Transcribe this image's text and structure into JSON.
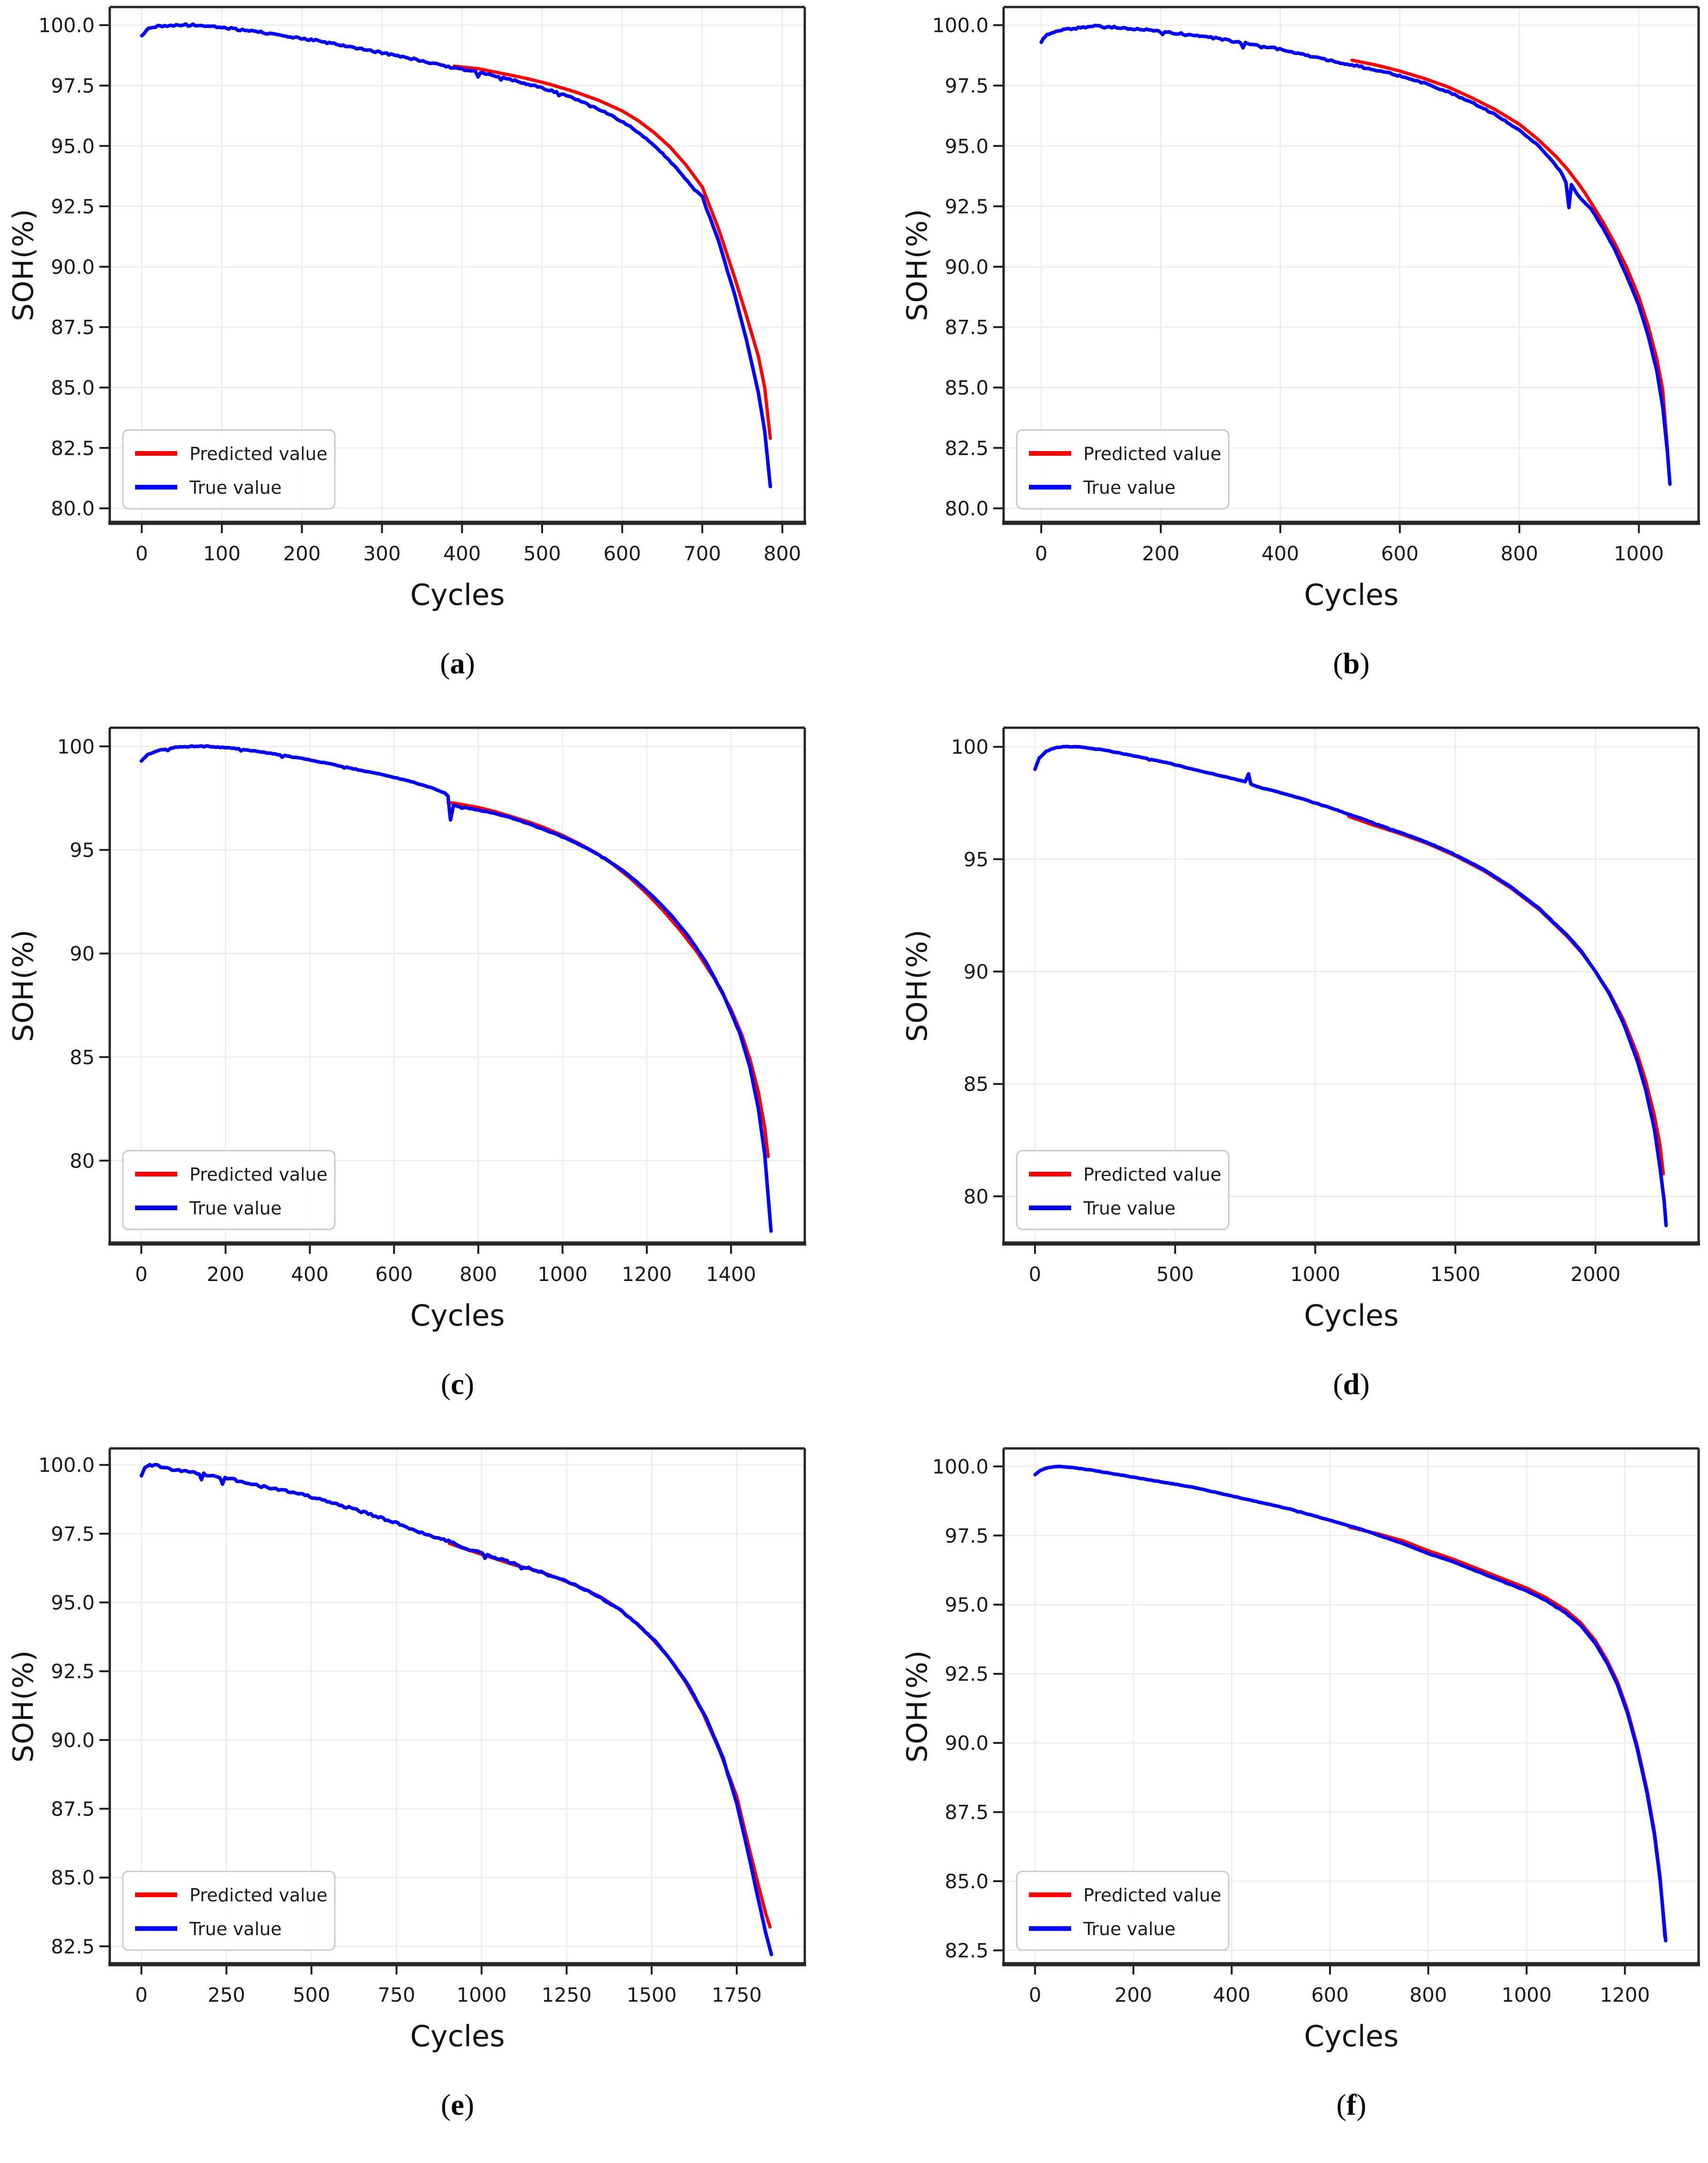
{
  "figure": {
    "background": "#ffffff",
    "description": "Six-panel figure of battery SOH degradation: predicted vs true value curves over cycles"
  },
  "punct": {
    "open": "(",
    "close": ")"
  },
  "legend": {
    "items": [
      {
        "label": "Predicted value",
        "color": "#ff0000"
      },
      {
        "label": "True value",
        "color": "#0000ff"
      }
    ],
    "position": "lower left"
  },
  "style": {
    "grid_color": "#ebebeb",
    "spine_color": "#262626",
    "tick_color": "#1a1a1a",
    "tick_label_color": "#1a1a1a",
    "legend_border": "#c9c9c9",
    "legend_bg": "#ffffff",
    "predicted_color": "#ff0000",
    "true_color": "#0000ff"
  },
  "chart_data": [
    {
      "id": "a",
      "caption": "a",
      "type": "line",
      "grid": true,
      "xlabel": "Cycles",
      "ylabel": "SOH(%)",
      "xlim": [
        -40,
        828
      ],
      "ylim": [
        79.4,
        100.75
      ],
      "x_ticks": [
        "0",
        "100",
        "200",
        "300",
        "400",
        "500",
        "600",
        "700",
        "800"
      ],
      "y_ticks": [
        "80.0",
        "82.5",
        "85.0",
        "87.5",
        "90.0",
        "92.5",
        "95.0",
        "97.5",
        "100.0"
      ],
      "legend_position": "lower left",
      "series": [
        {
          "name": "Predicted value",
          "color": "#ff0000",
          "width": 7,
          "noise": 0,
          "x": [
            390,
            420,
            450,
            480,
            510,
            540,
            570,
            600,
            620,
            640,
            660,
            680,
            700,
            720,
            740,
            755,
            770,
            778,
            785
          ],
          "y": [
            98.3,
            98.2,
            98.0,
            97.8,
            97.55,
            97.25,
            96.9,
            96.45,
            96.05,
            95.55,
            94.95,
            94.2,
            93.3,
            91.6,
            89.6,
            88.0,
            86.3,
            85.0,
            82.9
          ]
        },
        {
          "name": "True value",
          "color": "#0000ff",
          "width": 7.5,
          "noise": 0.05,
          "x": [
            0,
            8,
            20,
            40,
            70,
            100,
            140,
            180,
            220,
            260,
            300,
            340,
            380,
            420,
            460,
            500,
            530,
            560,
            590,
            610,
            630,
            650,
            670,
            690,
            700,
            720,
            740,
            755,
            770,
            778,
            785
          ],
          "y": [
            99.55,
            99.85,
            99.97,
            100.0,
            100.0,
            99.9,
            99.75,
            99.55,
            99.35,
            99.1,
            98.85,
            98.6,
            98.3,
            98.05,
            97.75,
            97.4,
            97.1,
            96.7,
            96.2,
            95.8,
            95.3,
            94.7,
            94.0,
            93.2,
            92.9,
            91.1,
            88.9,
            87.0,
            84.8,
            83.2,
            80.9
          ]
        }
      ]
    },
    {
      "id": "b",
      "caption": "b",
      "type": "line",
      "grid": true,
      "xlabel": "Cycles",
      "ylabel": "SOH(%)",
      "xlim": [
        -63,
        1100
      ],
      "ylim": [
        79.4,
        100.75
      ],
      "x_ticks": [
        "0",
        "200",
        "400",
        "600",
        "800",
        "1000"
      ],
      "y_ticks": [
        "80.0",
        "82.5",
        "85.0",
        "87.5",
        "90.0",
        "92.5",
        "95.0",
        "97.5",
        "100.0"
      ],
      "legend_position": "lower left",
      "series": [
        {
          "name": "Predicted value",
          "color": "#ff0000",
          "width": 7,
          "noise": 0,
          "x": [
            520,
            560,
            600,
            640,
            680,
            720,
            760,
            800,
            830,
            860,
            880,
            900,
            910,
            920,
            940,
            960,
            980,
            1000,
            1015,
            1030,
            1040,
            1048
          ],
          "y": [
            98.55,
            98.35,
            98.1,
            97.8,
            97.45,
            97.0,
            96.5,
            95.9,
            95.3,
            94.6,
            94.05,
            93.4,
            93.05,
            92.65,
            91.85,
            90.95,
            89.95,
            88.75,
            87.6,
            86.2,
            84.9,
            82.4
          ]
        },
        {
          "name": "True value",
          "color": "#0000ff",
          "width": 7.5,
          "noise": 0.05,
          "x": [
            0,
            10,
            25,
            50,
            90,
            130,
            180,
            230,
            280,
            330,
            380,
            430,
            470,
            520,
            560,
            600,
            640,
            680,
            720,
            760,
            800,
            830,
            856,
            870,
            878,
            883,
            887,
            893,
            900,
            910,
            920,
            940,
            960,
            980,
            1000,
            1015,
            1030,
            1040,
            1048,
            1052
          ],
          "y": [
            99.35,
            99.6,
            99.75,
            99.85,
            99.95,
            99.9,
            99.8,
            99.65,
            99.5,
            99.3,
            99.1,
            98.85,
            98.6,
            98.35,
            98.15,
            97.9,
            97.6,
            97.25,
            96.8,
            96.3,
            95.65,
            95.05,
            94.35,
            93.9,
            93.5,
            92.45,
            93.4,
            93.15,
            92.9,
            92.65,
            92.4,
            91.6,
            90.7,
            89.6,
            88.4,
            87.2,
            85.7,
            84.2,
            82.3,
            81.0
          ]
        }
      ]
    },
    {
      "id": "c",
      "caption": "c",
      "type": "line",
      "grid": true,
      "xlabel": "Cycles",
      "ylabel": "SOH(%)",
      "xlim": [
        -75,
        1575
      ],
      "ylim": [
        76.0,
        100.9
      ],
      "x_ticks": [
        "0",
        "200",
        "400",
        "600",
        "800",
        "1000",
        "1200",
        "1400"
      ],
      "y_ticks": [
        "80",
        "85",
        "90",
        "95",
        "100"
      ],
      "legend_position": "lower left",
      "series": [
        {
          "name": "Predicted value",
          "color": "#ff0000",
          "width": 7,
          "noise": 0,
          "x": [
            728,
            760,
            800,
            840,
            880,
            920,
            960,
            1000,
            1040,
            1080,
            1120,
            1160,
            1200,
            1240,
            1280,
            1320,
            1360,
            1400,
            1425,
            1445,
            1465,
            1480,
            1488
          ],
          "y": [
            97.3,
            97.2,
            97.05,
            96.85,
            96.6,
            96.35,
            96.05,
            95.7,
            95.3,
            94.85,
            94.3,
            93.65,
            92.9,
            92.05,
            91.1,
            90.05,
            88.8,
            87.3,
            86.1,
            84.9,
            83.3,
            81.6,
            80.2
          ]
        },
        {
          "name": "True value",
          "color": "#0000ff",
          "width": 7.5,
          "noise": 0.022,
          "x": [
            0,
            15,
            40,
            80,
            120,
            160,
            220,
            280,
            340,
            400,
            460,
            520,
            580,
            640,
            690,
            720,
            728,
            734,
            741,
            755,
            780,
            820,
            860,
            900,
            940,
            980,
            1020,
            1060,
            1100,
            1140,
            1180,
            1220,
            1260,
            1300,
            1340,
            1380,
            1420,
            1445,
            1465,
            1480,
            1490,
            1495
          ],
          "y": [
            99.3,
            99.6,
            99.8,
            99.95,
            100.0,
            100.0,
            99.9,
            99.75,
            99.55,
            99.35,
            99.1,
            98.85,
            98.6,
            98.3,
            98.0,
            97.75,
            97.6,
            96.45,
            97.15,
            97.1,
            97.0,
            96.85,
            96.65,
            96.4,
            96.1,
            95.8,
            95.45,
            95.05,
            94.6,
            94.05,
            93.4,
            92.65,
            91.8,
            90.8,
            89.6,
            88.1,
            86.2,
            84.5,
            82.5,
            80.3,
            77.8,
            76.6
          ]
        }
      ]
    },
    {
      "id": "d",
      "caption": "d",
      "type": "line",
      "grid": true,
      "xlabel": "Cycles",
      "ylabel": "SOH(%)",
      "xlim": [
        -112,
        2368
      ],
      "ylim": [
        77.9,
        100.85
      ],
      "x_ticks": [
        "0",
        "500",
        "1000",
        "1500",
        "2000"
      ],
      "y_ticks": [
        "80",
        "85",
        "90",
        "95",
        "100"
      ],
      "legend_position": "lower left",
      "series": [
        {
          "name": "Predicted value",
          "color": "#ff0000",
          "width": 7,
          "noise": 0,
          "x": [
            1120,
            1200,
            1300,
            1400,
            1500,
            1600,
            1700,
            1800,
            1900,
            1950,
            2000,
            2050,
            2100,
            2150,
            2180,
            2210,
            2230,
            2242
          ],
          "y": [
            96.9,
            96.55,
            96.15,
            95.7,
            95.15,
            94.5,
            93.7,
            92.75,
            91.55,
            90.85,
            90.0,
            89.05,
            87.85,
            86.3,
            85.1,
            83.6,
            82.3,
            81.0
          ]
        },
        {
          "name": "True value",
          "color": "#0000ff",
          "width": 7.5,
          "noise": 0.018,
          "x": [
            0,
            15,
            40,
            70,
            100,
            150,
            250,
            350,
            450,
            550,
            650,
            750,
            762,
            770,
            778,
            800,
            850,
            950,
            1050,
            1120,
            1200,
            1300,
            1400,
            1500,
            1600,
            1700,
            1800,
            1900,
            1950,
            2000,
            2050,
            2100,
            2150,
            2180,
            2210,
            2230,
            2245,
            2252
          ],
          "y": [
            99.0,
            99.5,
            99.8,
            99.95,
            100.0,
            100.0,
            99.85,
            99.6,
            99.35,
            99.05,
            98.75,
            98.45,
            98.8,
            98.35,
            98.3,
            98.2,
            98.05,
            97.7,
            97.3,
            97.0,
            96.65,
            96.2,
            95.75,
            95.2,
            94.55,
            93.75,
            92.8,
            91.6,
            90.9,
            90.0,
            89.0,
            87.7,
            86.0,
            84.7,
            83.0,
            81.3,
            79.8,
            78.7
          ]
        }
      ]
    },
    {
      "id": "e",
      "caption": "e",
      "type": "line",
      "grid": true,
      "xlabel": "Cycles",
      "ylabel": "SOH(%)",
      "xlim": [
        -93,
        1950
      ],
      "ylim": [
        81.85,
        100.6
      ],
      "x_ticks": [
        "0",
        "250",
        "500",
        "750",
        "1000",
        "1250",
        "1500",
        "1750"
      ],
      "y_ticks": [
        "82.5",
        "85.0",
        "87.5",
        "90.0",
        "92.5",
        "95.0",
        "97.5",
        "100.0"
      ],
      "legend_position": "lower left",
      "series": [
        {
          "name": "Predicted value",
          "color": "#ff0000",
          "width": 7,
          "noise": 0,
          "x": [
            905,
            950,
            1000,
            1050,
            1100,
            1150,
            1200,
            1250,
            1300,
            1350,
            1400,
            1450,
            1500,
            1550,
            1600,
            1650,
            1700,
            1750,
            1780,
            1810,
            1835,
            1848
          ],
          "y": [
            97.15,
            96.95,
            96.75,
            96.55,
            96.35,
            96.2,
            96.0,
            95.75,
            95.5,
            95.2,
            94.8,
            94.3,
            93.7,
            93.0,
            92.1,
            91.0,
            89.6,
            87.95,
            86.4,
            84.9,
            83.7,
            83.2
          ]
        },
        {
          "name": "True value",
          "color": "#0000ff",
          "width": 7.5,
          "noise": 0.065,
          "x": [
            0,
            10,
            25,
            50,
            90,
            130,
            170,
            210,
            260,
            310,
            360,
            410,
            460,
            510,
            560,
            610,
            660,
            710,
            760,
            810,
            860,
            910,
            960,
            1010,
            1060,
            1110,
            1160,
            1210,
            1260,
            1310,
            1360,
            1410,
            1460,
            1510,
            1560,
            1610,
            1660,
            1710,
            1750,
            1780,
            1810,
            1835,
            1852
          ],
          "y": [
            99.6,
            99.9,
            100.0,
            99.95,
            99.85,
            99.8,
            99.7,
            99.6,
            99.5,
            99.35,
            99.2,
            99.1,
            98.95,
            98.8,
            98.6,
            98.45,
            98.25,
            98.05,
            97.85,
            97.6,
            97.4,
            97.2,
            96.95,
            96.75,
            96.55,
            96.35,
            96.15,
            95.95,
            95.7,
            95.45,
            95.1,
            94.7,
            94.2,
            93.6,
            92.85,
            91.95,
            90.8,
            89.35,
            87.7,
            86.1,
            84.4,
            83.0,
            82.2
          ]
        }
      ]
    },
    {
      "id": "f",
      "caption": "f",
      "type": "line",
      "grid": true,
      "xlabel": "Cycles",
      "ylabel": "SOH(%)",
      "xlim": [
        -64,
        1350
      ],
      "ylim": [
        82.0,
        100.65
      ],
      "x_ticks": [
        "0",
        "200",
        "400",
        "600",
        "800",
        "1000",
        "1200"
      ],
      "y_ticks": [
        "82.5",
        "85.0",
        "87.5",
        "90.0",
        "92.5",
        "95.0",
        "97.5",
        "100.0"
      ],
      "legend_position": "lower left",
      "series": [
        {
          "name": "Predicted value",
          "color": "#ff0000",
          "width": 7,
          "noise": 0,
          "x": [
            640,
            700,
            750,
            800,
            850,
            900,
            950,
            1000,
            1040,
            1080,
            1110,
            1140,
            1165,
            1185,
            1205,
            1225,
            1245,
            1260,
            1272,
            1281
          ],
          "y": [
            97.8,
            97.55,
            97.3,
            96.95,
            96.65,
            96.3,
            95.95,
            95.6,
            95.25,
            94.8,
            94.35,
            93.7,
            92.95,
            92.2,
            91.2,
            89.9,
            88.3,
            86.8,
            85.1,
            83.0
          ]
        },
        {
          "name": "True value",
          "color": "#0000ff",
          "width": 7.5,
          "noise": 0.01,
          "x": [
            0,
            10,
            25,
            45,
            80,
            120,
            170,
            220,
            270,
            320,
            370,
            420,
            470,
            520,
            570,
            620,
            660,
            700,
            750,
            800,
            850,
            900,
            950,
            1000,
            1040,
            1080,
            1110,
            1140,
            1165,
            1185,
            1205,
            1225,
            1245,
            1260,
            1272,
            1283
          ],
          "y": [
            99.7,
            99.85,
            99.95,
            100.0,
            99.95,
            99.85,
            99.7,
            99.55,
            99.4,
            99.25,
            99.05,
            98.85,
            98.65,
            98.45,
            98.2,
            97.95,
            97.75,
            97.5,
            97.2,
            96.85,
            96.55,
            96.2,
            95.85,
            95.5,
            95.15,
            94.7,
            94.25,
            93.6,
            92.85,
            92.1,
            91.1,
            89.8,
            88.2,
            86.7,
            85.0,
            82.85
          ]
        }
      ]
    }
  ]
}
